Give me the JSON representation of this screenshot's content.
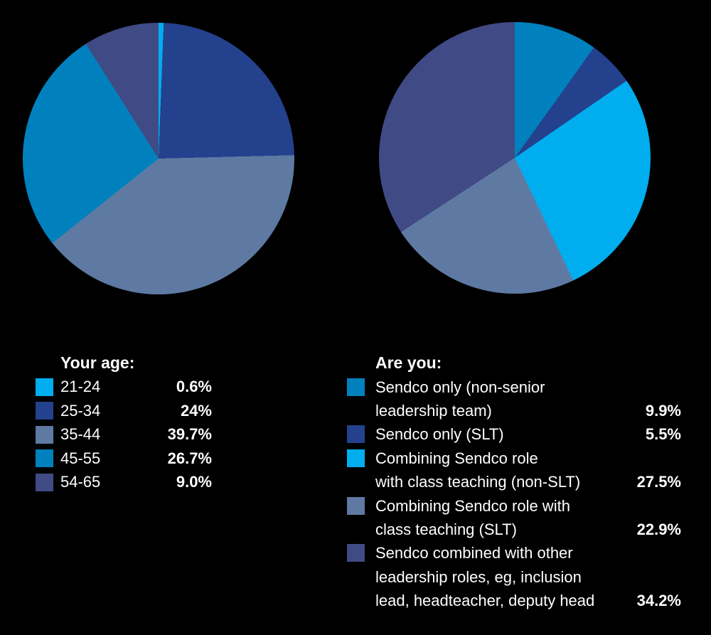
{
  "background_color": "#000000",
  "text_color": "#FFFFFF",
  "chart_data": [
    {
      "id": "age",
      "type": "pie",
      "title": "Your age:",
      "start_angle_deg": 0,
      "direction": "clockwise",
      "legend_position": "below-left",
      "slices": [
        {
          "label": "21-24",
          "value": 0.6,
          "value_label": "0.6%",
          "color": "#00AEEF"
        },
        {
          "label": "25-34",
          "value": 24,
          "value_label": "24%",
          "color": "#24418E"
        },
        {
          "label": "35-44",
          "value": 39.7,
          "value_label": "39.7%",
          "color": "#5E7AA3"
        },
        {
          "label": "45-55",
          "value": 26.7,
          "value_label": "26.7%",
          "color": "#0081BE"
        },
        {
          "label": "54-65",
          "value": 9.0,
          "value_label": "9.0%",
          "color": "#404A85"
        }
      ]
    },
    {
      "id": "role",
      "type": "pie",
      "title": "Are you:",
      "start_angle_deg": 0,
      "direction": "clockwise",
      "legend_position": "below-right",
      "slices": [
        {
          "lines": [
            "Sendco only (non-senior",
            "leadership team)"
          ],
          "value": 9.9,
          "value_label": "9.9%",
          "color": "#0081BE"
        },
        {
          "lines": [
            "Sendco only (SLT)"
          ],
          "value": 5.5,
          "value_label": "5.5%",
          "color": "#24418E"
        },
        {
          "lines": [
            "Combining Sendco role",
            "with class teaching (non-SLT)"
          ],
          "value": 27.5,
          "value_label": "27.5%",
          "color": "#00AEEF"
        },
        {
          "lines": [
            "Combining Sendco role with",
            "class teaching (SLT)"
          ],
          "value": 22.9,
          "value_label": "22.9%",
          "color": "#5E7AA3"
        },
        {
          "lines": [
            "Sendco combined with other",
            "leadership roles, eg, inclusion",
            "lead, headteacher, deputy head"
          ],
          "value": 34.2,
          "value_label": "34.2%",
          "color": "#404A85"
        }
      ]
    }
  ]
}
